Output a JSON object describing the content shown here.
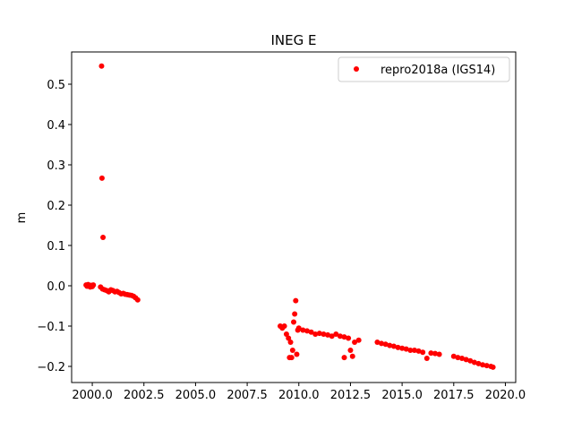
{
  "chart_data": {
    "type": "scatter",
    "title": "INEG E",
    "xlabel": "",
    "ylabel": "m",
    "xlim": [
      1999.0,
      2020.5
    ],
    "ylim": [
      -0.24,
      0.58
    ],
    "xticks": [
      2000.0,
      2002.5,
      2005.0,
      2007.5,
      2010.0,
      2012.5,
      2015.0,
      2017.5,
      2020.0
    ],
    "xtick_labels": [
      "2000.0",
      "2002.5",
      "2005.0",
      "2007.5",
      "2010.0",
      "2012.5",
      "2015.0",
      "2017.5",
      "2020.0"
    ],
    "yticks": [
      -0.2,
      -0.1,
      0.0,
      0.1,
      0.2,
      0.3,
      0.4,
      0.5
    ],
    "ytick_labels": [
      "−0.2",
      "−0.1",
      "0.0",
      "0.1",
      "0.2",
      "0.3",
      "0.4",
      "0.5"
    ],
    "grid": false,
    "legend_position": "top-right",
    "series": [
      {
        "name": "repro2018a (IGS14)",
        "color": "#ff0000",
        "marker": "circle",
        "points": [
          [
            1999.7,
            0.002
          ],
          [
            1999.75,
            -0.001
          ],
          [
            1999.8,
            0.003
          ],
          [
            1999.85,
            0.0
          ],
          [
            1999.9,
            -0.003
          ],
          [
            1999.95,
            0.001
          ],
          [
            2000.0,
            -0.002
          ],
          [
            2000.05,
            0.002
          ],
          [
            2000.45,
            0.545
          ],
          [
            2000.47,
            0.267
          ],
          [
            2000.52,
            0.12
          ],
          [
            2000.4,
            -0.003
          ],
          [
            2000.5,
            -0.008
          ],
          [
            2000.6,
            -0.01
          ],
          [
            2000.7,
            -0.012
          ],
          [
            2000.8,
            -0.015
          ],
          [
            2000.9,
            -0.01
          ],
          [
            2001.0,
            -0.012
          ],
          [
            2001.1,
            -0.015
          ],
          [
            2001.2,
            -0.014
          ],
          [
            2001.3,
            -0.017
          ],
          [
            2001.4,
            -0.02
          ],
          [
            2001.5,
            -0.019
          ],
          [
            2001.6,
            -0.021
          ],
          [
            2001.7,
            -0.022
          ],
          [
            2001.8,
            -0.023
          ],
          [
            2001.9,
            -0.024
          ],
          [
            2002.0,
            -0.026
          ],
          [
            2002.1,
            -0.03
          ],
          [
            2002.2,
            -0.035
          ],
          [
            2009.1,
            -0.1
          ],
          [
            2009.2,
            -0.105
          ],
          [
            2009.3,
            -0.1
          ],
          [
            2009.4,
            -0.12
          ],
          [
            2009.5,
            -0.13
          ],
          [
            2009.6,
            -0.14
          ],
          [
            2009.55,
            -0.178
          ],
          [
            2009.65,
            -0.178
          ],
          [
            2009.7,
            -0.16
          ],
          [
            2009.75,
            -0.09
          ],
          [
            2009.8,
            -0.07
          ],
          [
            2009.85,
            -0.037
          ],
          [
            2009.9,
            -0.17
          ],
          [
            2009.95,
            -0.11
          ],
          [
            2010.0,
            -0.105
          ],
          [
            2010.2,
            -0.11
          ],
          [
            2010.4,
            -0.112
          ],
          [
            2010.6,
            -0.115
          ],
          [
            2010.8,
            -0.12
          ],
          [
            2011.0,
            -0.118
          ],
          [
            2011.2,
            -0.12
          ],
          [
            2011.4,
            -0.122
          ],
          [
            2011.6,
            -0.125
          ],
          [
            2011.8,
            -0.12
          ],
          [
            2012.0,
            -0.125
          ],
          [
            2012.2,
            -0.127
          ],
          [
            2012.4,
            -0.13
          ],
          [
            2012.2,
            -0.178
          ],
          [
            2012.5,
            -0.16
          ],
          [
            2012.6,
            -0.175
          ],
          [
            2012.7,
            -0.14
          ],
          [
            2012.9,
            -0.135
          ],
          [
            2013.8,
            -0.14
          ],
          [
            2014.0,
            -0.143
          ],
          [
            2014.2,
            -0.145
          ],
          [
            2014.4,
            -0.148
          ],
          [
            2014.6,
            -0.15
          ],
          [
            2014.8,
            -0.153
          ],
          [
            2015.0,
            -0.155
          ],
          [
            2015.2,
            -0.157
          ],
          [
            2015.4,
            -0.16
          ],
          [
            2015.6,
            -0.16
          ],
          [
            2015.8,
            -0.162
          ],
          [
            2016.0,
            -0.165
          ],
          [
            2016.2,
            -0.18
          ],
          [
            2016.4,
            -0.167
          ],
          [
            2016.6,
            -0.168
          ],
          [
            2016.8,
            -0.17
          ],
          [
            2017.5,
            -0.175
          ],
          [
            2017.7,
            -0.178
          ],
          [
            2017.9,
            -0.18
          ],
          [
            2018.1,
            -0.183
          ],
          [
            2018.3,
            -0.186
          ],
          [
            2018.5,
            -0.19
          ],
          [
            2018.7,
            -0.193
          ],
          [
            2018.9,
            -0.196
          ],
          [
            2019.1,
            -0.198
          ],
          [
            2019.3,
            -0.2
          ],
          [
            2019.4,
            -0.202
          ]
        ]
      }
    ]
  }
}
